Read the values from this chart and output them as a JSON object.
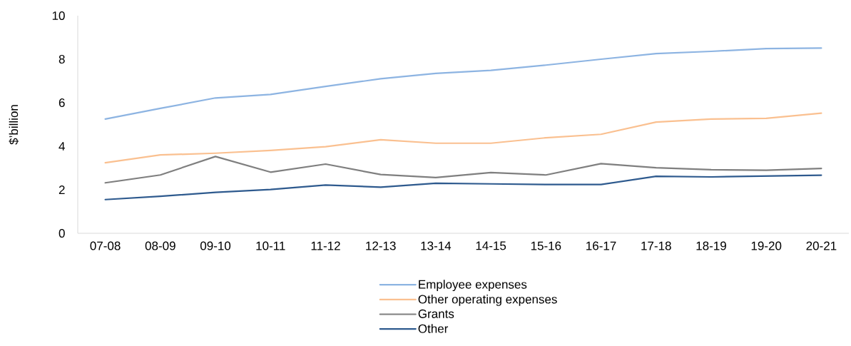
{
  "chart_data": {
    "type": "line",
    "ylabel": "$’billion",
    "categories": [
      "07-08",
      "08-09",
      "09-10",
      "10-11",
      "11-12",
      "12-13",
      "13-14",
      "14-15",
      "15-16",
      "16-17",
      "17-18",
      "18-19",
      "19-20",
      "20-21"
    ],
    "ylim": [
      0,
      10
    ],
    "yticks": [
      0,
      2,
      4,
      6,
      8,
      10
    ],
    "legend": "bottom",
    "series": [
      {
        "name": "Employee expenses",
        "color": "#8db4e2",
        "values": [
          5.25,
          5.74,
          6.22,
          6.38,
          6.75,
          7.1,
          7.35,
          7.49,
          7.73,
          8.0,
          8.26,
          8.36,
          8.49,
          8.51
        ]
      },
      {
        "name": "Other operating expenses",
        "color": "#fac090",
        "values": [
          3.24,
          3.6,
          3.68,
          3.81,
          3.98,
          4.3,
          4.14,
          4.14,
          4.39,
          4.55,
          5.11,
          5.25,
          5.28,
          5.52
        ]
      },
      {
        "name": "Grants",
        "color": "#7f7f7f",
        "values": [
          2.32,
          2.68,
          3.53,
          2.81,
          3.18,
          2.7,
          2.56,
          2.79,
          2.68,
          3.2,
          3.01,
          2.92,
          2.9,
          2.98
        ]
      },
      {
        "name": "Other",
        "color": "#2e5a8e",
        "values": [
          1.55,
          1.7,
          1.88,
          2.01,
          2.22,
          2.12,
          2.3,
          2.27,
          2.24,
          2.24,
          2.62,
          2.59,
          2.63,
          2.67
        ]
      }
    ]
  }
}
